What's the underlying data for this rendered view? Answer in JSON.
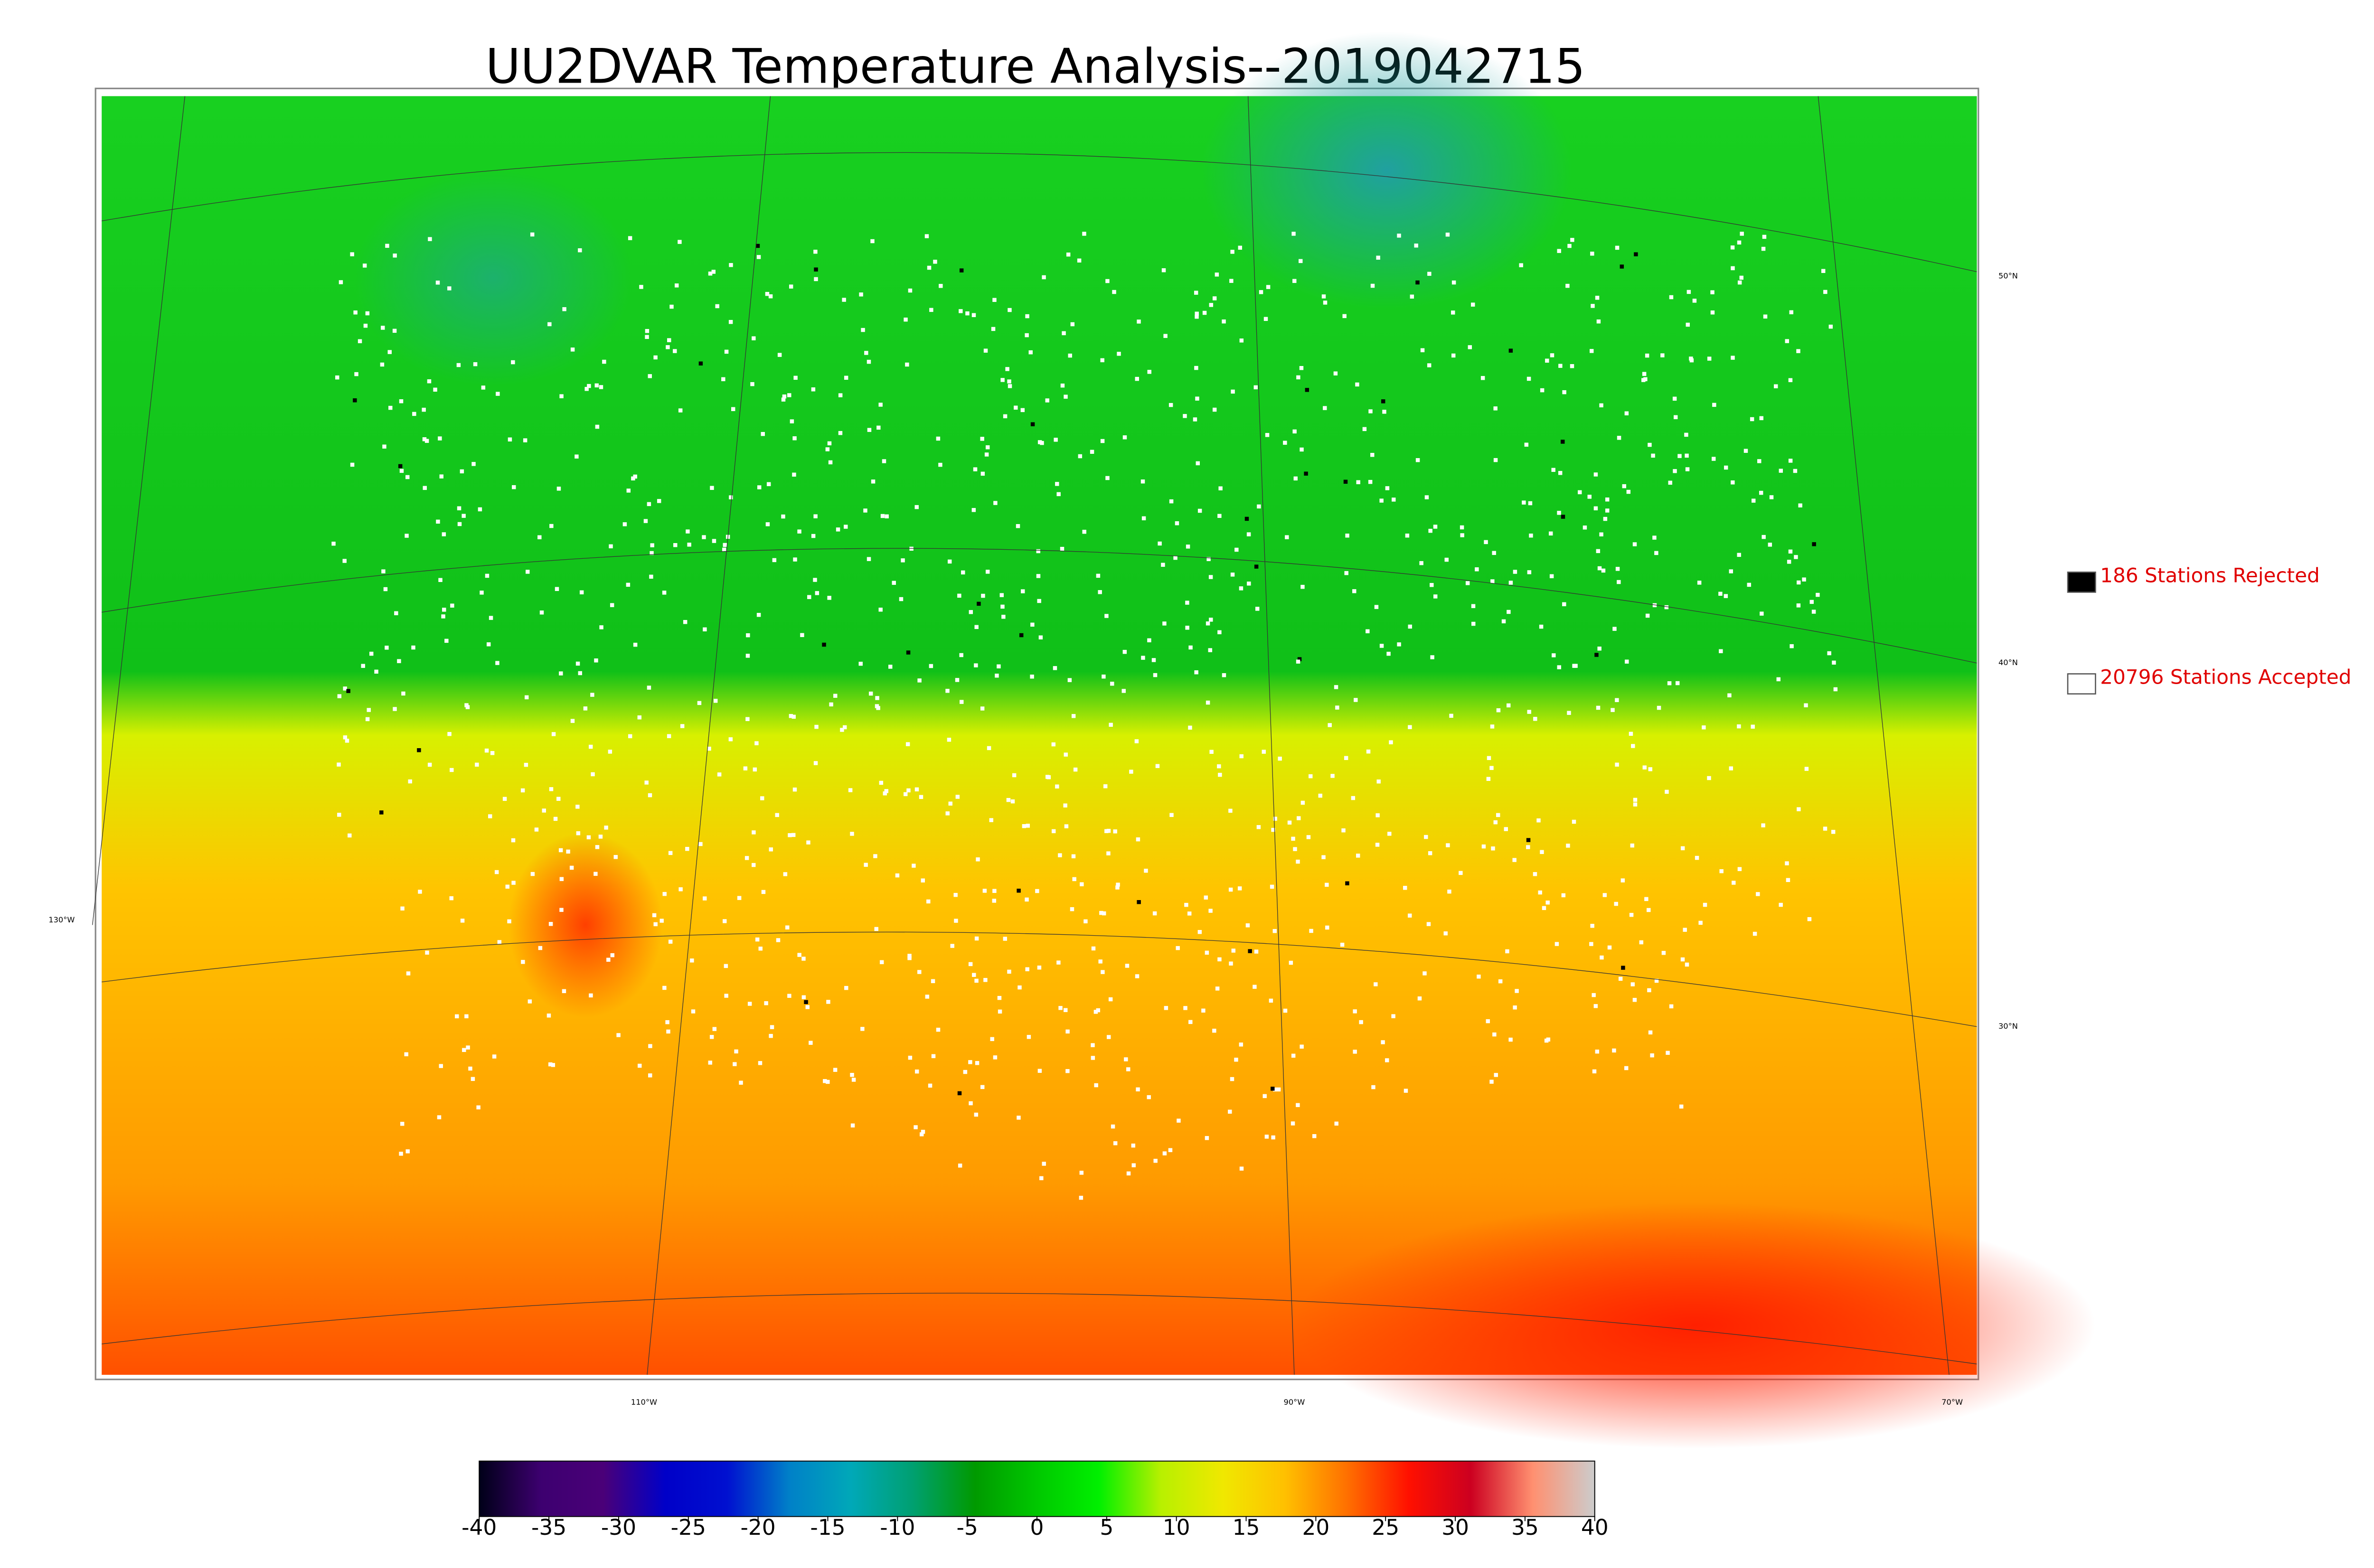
{
  "title": "UU2DVAR Temperature Analysis--2019042715",
  "legend": [
    {
      "label": "186 Stations Rejected",
      "color": "#000000"
    },
    {
      "label": "20796 Stations Accepted",
      "color": "#ffffff"
    }
  ],
  "graticule": {
    "lat_labels": [
      "50°N",
      "40°N",
      "30°N"
    ],
    "lon_labels": [
      "130°W",
      "110°W",
      "90°W",
      "70°W"
    ]
  },
  "colorbar": {
    "ticks": [
      -40,
      -35,
      -30,
      -25,
      -20,
      -15,
      -10,
      -5,
      0,
      5,
      10,
      15,
      20,
      25,
      30,
      35,
      40
    ],
    "colors": [
      "#000018",
      "#3d0070",
      "#4a0078",
      "#0000c8",
      "#0010d0",
      "#0080c8",
      "#00a8b8",
      "#00a070",
      "#009a00",
      "#00c800",
      "#00f000",
      "#b8f000",
      "#f0e800",
      "#ffc000",
      "#ff7000",
      "#ff1000",
      "#cc0020",
      "#ff9070",
      "#cccccc"
    ]
  }
}
